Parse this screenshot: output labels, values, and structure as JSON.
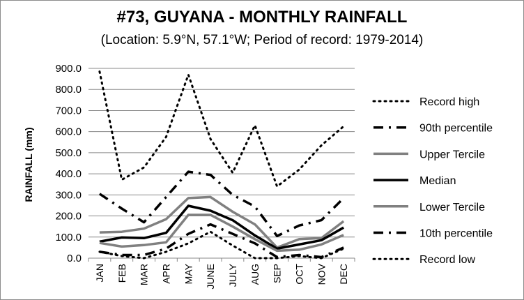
{
  "chart_data": {
    "type": "line",
    "title": "#73, GUYANA - MONTHLY RAINFALL",
    "subtitle": "(Location: 5.9°N, 57.1°W; Period of record: 1979-2014)",
    "xlabel": "",
    "ylabel": "RAINFALL (mm)",
    "ylim": [
      0,
      900
    ],
    "yticks": [
      "0.0",
      "100.0",
      "200.0",
      "300.0",
      "400.0",
      "500.0",
      "600.0",
      "700.0",
      "800.0",
      "900.0"
    ],
    "categories": [
      "JAN",
      "FEB",
      "MAR",
      "APR",
      "MAY",
      "JUNE",
      "JULY",
      "AUG",
      "SEP",
      "OCT",
      "NOV",
      "DEC"
    ],
    "grid": "horizontal",
    "legend_position": "right",
    "series": [
      {
        "name": "Record high",
        "values": [
          885,
          372,
          430,
          575,
          870,
          565,
          405,
          630,
          340,
          420,
          535,
          625
        ],
        "color": "#000000",
        "style": "dotted",
        "width": 3
      },
      {
        "name": "90th percentile",
        "values": [
          305,
          235,
          170,
          290,
          410,
          395,
          300,
          245,
          105,
          155,
          180,
          285
        ],
        "color": "#000000",
        "style": "dashdot",
        "width": 3.5
      },
      {
        "name": "Upper Tercile",
        "values": [
          122,
          125,
          140,
          185,
          285,
          290,
          220,
          160,
          50,
          90,
          95,
          175
        ],
        "color": "#808080",
        "style": "solid",
        "width": 3.5
      },
      {
        "name": "Median",
        "values": [
          78,
          98,
          95,
          120,
          248,
          225,
          180,
          108,
          45,
          65,
          85,
          145
        ],
        "color": "#000000",
        "style": "solid",
        "width": 3.5
      },
      {
        "name": "Lower Tercile",
        "values": [
          72,
          55,
          62,
          75,
          205,
          205,
          150,
          90,
          35,
          40,
          65,
          110
        ],
        "color": "#808080",
        "style": "solid",
        "width": 3.5
      },
      {
        "name": "10th percentile",
        "values": [
          30,
          15,
          15,
          45,
          115,
          160,
          115,
          70,
          5,
          15,
          5,
          50
        ],
        "color": "#000000",
        "style": "dashdot",
        "width": 3.5
      },
      {
        "name": "Record low",
        "values": [
          30,
          10,
          0,
          30,
          70,
          125,
          60,
          0,
          0,
          10,
          0,
          45
        ],
        "color": "#000000",
        "style": "dotted",
        "width": 3
      }
    ]
  }
}
